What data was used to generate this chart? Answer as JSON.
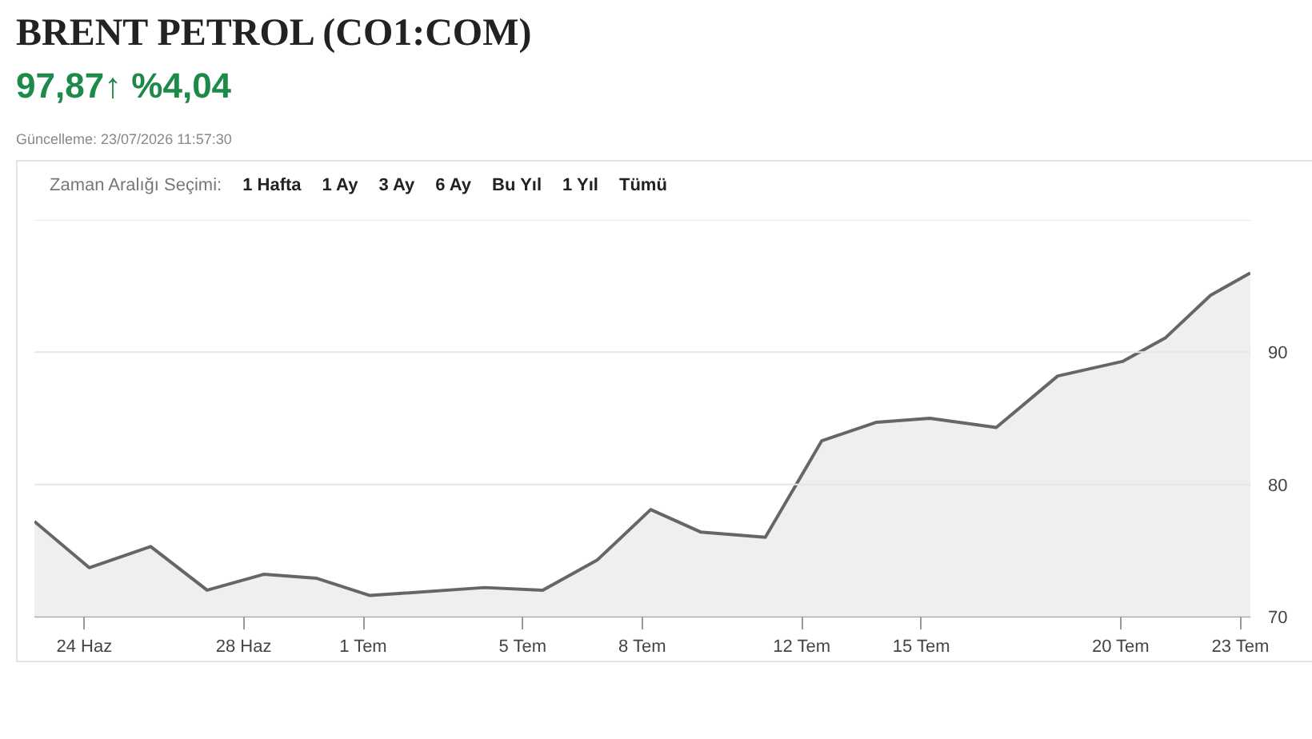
{
  "chart_data": {
    "type": "area",
    "title": "BRENT PETROL (CO1:COM)",
    "subtitle": "97,87↑ %4,04",
    "annotations": [
      "Güncelleme: 23/07/2026 11:57:30",
      "Zaman Aralığı Seçimi:",
      "1 Hafta",
      "1 Ay",
      "3 Ay",
      "6 Ay",
      "Bu Yıl",
      "1 Yıl",
      "Tümü"
    ],
    "x": [
      "2026-06-22T18:00",
      "2026-06-24T03:00",
      "2026-06-25T16:00",
      "2026-06-27T02:00",
      "2026-06-28T12:00",
      "2026-06-29T20:00",
      "2026-07-01T04:00",
      "2026-07-04T01:00",
      "2026-07-05T12:00",
      "2026-07-06T21:00",
      "2026-07-08T05:00",
      "2026-07-09T11:00",
      "2026-07-11T02:00",
      "2026-07-12T12:00",
      "2026-07-13T21:00",
      "2026-07-15T05:00",
      "2026-07-16T21:00",
      "2026-07-18T10:00",
      "2026-07-20T01:00",
      "2026-07-21T03:00",
      "2026-07-22T06:00",
      "2026-07-23T06:00"
    ],
    "series": [
      {
        "color": "#666666",
        "values": [
          77.2,
          73.7,
          75.3,
          72.0,
          73.2,
          72.9,
          71.6,
          72.2,
          72.0,
          74.3,
          78.1,
          76.4,
          76.0,
          83.3,
          84.7,
          85.0,
          84.3,
          88.2,
          89.3,
          91.1,
          94.3,
          96.0
        ]
      }
    ],
    "xlim": [
      "2026-06-22T18:00",
      "2026-07-23T06:00"
    ],
    "xticks": [
      {
        "value": "2026-06-24",
        "label": "24 Haz"
      },
      {
        "value": "2026-06-28",
        "label": "28 Haz"
      },
      {
        "value": "2026-07-01",
        "label": "1 Tem"
      },
      {
        "value": "2026-07-05",
        "label": "5 Tem"
      },
      {
        "value": "2026-07-08",
        "label": "8 Tem"
      },
      {
        "value": "2026-07-12",
        "label": "12 Tem"
      },
      {
        "value": "2026-07-15",
        "label": "15 Tem"
      },
      {
        "value": "2026-07-20",
        "label": "20 Tem"
      },
      {
        "value": "2026-07-23",
        "label": "23 Tem"
      }
    ],
    "ylim": [
      70,
      100
    ],
    "yticks": [
      70,
      80,
      90,
      {
        "value": 100,
        "label": null
      }
    ],
    "grid": "y",
    "marker": "none",
    "line_style": "solid"
  }
}
